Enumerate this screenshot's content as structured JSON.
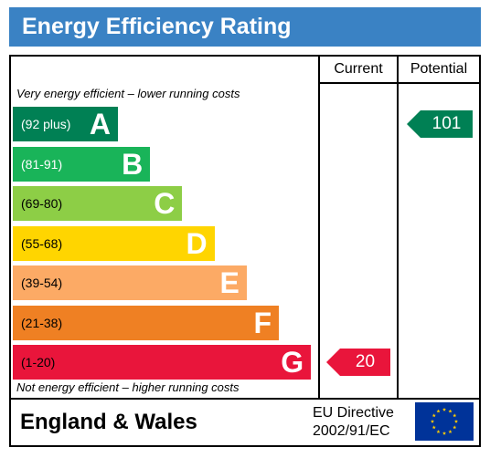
{
  "header": {
    "title": "Energy Efficiency Rating"
  },
  "columns": {
    "current": "Current",
    "potential": "Potential"
  },
  "notes": {
    "top": "Very energy efficient – lower running costs",
    "bottom": "Not energy efficient – higher running costs"
  },
  "chart_data": {
    "type": "bar",
    "title": "Energy Efficiency Rating",
    "categories": [
      "A",
      "B",
      "C",
      "D",
      "E",
      "F",
      "G"
    ],
    "bands": [
      {
        "letter": "A",
        "range": "(92 plus)",
        "min": 92,
        "max": 100,
        "color": "#008054",
        "text_color": "#ffffff"
      },
      {
        "letter": "B",
        "range": "(81-91)",
        "min": 81,
        "max": 91,
        "color": "#19b459",
        "text_color": "#ffffff"
      },
      {
        "letter": "C",
        "range": "(69-80)",
        "min": 69,
        "max": 80,
        "color": "#8dce46",
        "text_color": "#000000"
      },
      {
        "letter": "D",
        "range": "(55-68)",
        "min": 55,
        "max": 68,
        "color": "#ffd500",
        "text_color": "#000000"
      },
      {
        "letter": "E",
        "range": "(39-54)",
        "min": 39,
        "max": 54,
        "color": "#fcaa65",
        "text_color": "#000000"
      },
      {
        "letter": "F",
        "range": "(21-38)",
        "min": 21,
        "max": 38,
        "color": "#ef8023",
        "text_color": "#000000"
      },
      {
        "letter": "G",
        "range": "(1-20)",
        "min": 1,
        "max": 20,
        "color": "#e9153b",
        "text_color": "#000000"
      }
    ],
    "current": {
      "value": 20,
      "band": "G",
      "color": "#e9153b"
    },
    "potential": {
      "value": 101,
      "band": "A",
      "color": "#008054"
    }
  },
  "footer": {
    "region": "England & Wales",
    "directive_line1": "EU Directive",
    "directive_line2": "2002/91/EC"
  },
  "icons": {
    "flag": "eu-flag-icon"
  },
  "colors": {
    "title_bar": "#3a82c4",
    "flag_blue": "#003399",
    "flag_stars": "#ffcc00"
  }
}
